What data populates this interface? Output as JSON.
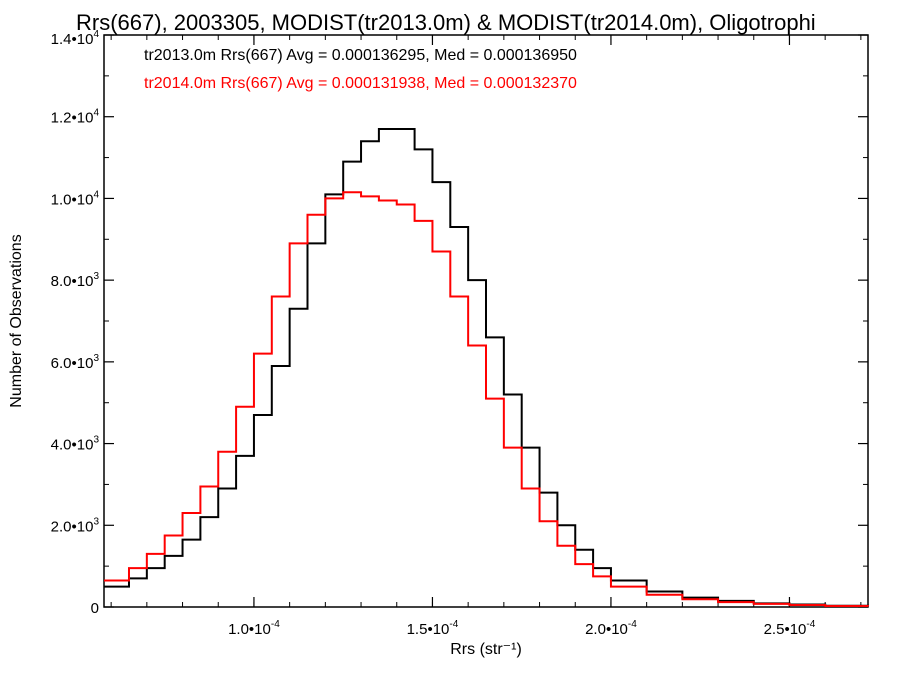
{
  "chart_data": {
    "type": "line",
    "title": "Rrs(667), 2003305, MODIST(tr2013.0m) & MODIST(tr2014.0m), Oligotrophi",
    "xlabel": "Rrs (str⁻¹)",
    "ylabel": "Number of Observations",
    "xlim": [
      5.8e-05,
      0.000272
    ],
    "ylim": [
      0,
      14000
    ],
    "x_ticks": [
      {
        "value": 0.0001,
        "label": "1.0•10⁻⁴"
      },
      {
        "value": 0.00015,
        "label": "1.5•10⁻⁴"
      },
      {
        "value": 0.0002,
        "label": "2.0•10⁻⁴"
      },
      {
        "value": 0.00025,
        "label": "2.5•10⁻⁴"
      }
    ],
    "y_ticks": [
      {
        "value": 0,
        "label": "0"
      },
      {
        "value": 2000,
        "label": "2.0•10³"
      },
      {
        "value": 4000,
        "label": "4.0•10³"
      },
      {
        "value": 6000,
        "label": "6.0•10³"
      },
      {
        "value": 8000,
        "label": "8.0•10³"
      },
      {
        "value": 10000,
        "label": "1.0•10⁴"
      },
      {
        "value": 12000,
        "label": "1.2•10⁴"
      },
      {
        "value": 14000,
        "label": "1.4•10⁴"
      }
    ],
    "annotations": [
      {
        "text": "tr2013.0m Rrs(667) Avg = 0.000136295, Med = 0.000136950",
        "color": "#000000"
      },
      {
        "text": "tr2014.0m Rrs(667) Avg = 0.000131938, Med = 0.000132370",
        "color": "#ff0000"
      }
    ],
    "series": [
      {
        "color": "#000000",
        "x": [
          5.8e-05,
          6.5e-05,
          7e-05,
          7.5e-05,
          8e-05,
          8.5e-05,
          9e-05,
          9.5e-05,
          0.0001,
          0.000105,
          0.00011,
          0.000115,
          0.00012,
          0.000125,
          0.00013,
          0.000135,
          0.00014,
          0.000145,
          0.00015,
          0.000155,
          0.00016,
          0.000165,
          0.00017,
          0.000175,
          0.00018,
          0.000185,
          0.00019,
          0.000195,
          0.0002,
          0.00021,
          0.00022,
          0.00023,
          0.00024,
          0.00025,
          0.00026,
          0.000272
        ],
        "values": [
          500,
          700,
          950,
          1250,
          1650,
          2200,
          2900,
          3700,
          4700,
          5900,
          7300,
          8900,
          10100,
          10900,
          11400,
          11700,
          11700,
          11200,
          10400,
          9300,
          8000,
          6600,
          5200,
          3900,
          2800,
          2000,
          1400,
          950,
          650,
          380,
          230,
          150,
          90,
          60,
          30,
          20
        ]
      },
      {
        "color": "#ff0000",
        "x": [
          5.8e-05,
          6.5e-05,
          7e-05,
          7.5e-05,
          8e-05,
          8.5e-05,
          9e-05,
          9.5e-05,
          0.0001,
          0.000105,
          0.00011,
          0.000115,
          0.00012,
          0.000125,
          0.00013,
          0.000135,
          0.00014,
          0.000145,
          0.00015,
          0.000155,
          0.00016,
          0.000165,
          0.00017,
          0.000175,
          0.00018,
          0.000185,
          0.00019,
          0.000195,
          0.0002,
          0.00021,
          0.00022,
          0.00023,
          0.00024,
          0.00025,
          0.00026,
          0.000272
        ],
        "values": [
          650,
          950,
          1300,
          1750,
          2300,
          2950,
          3800,
          4900,
          6200,
          7600,
          8900,
          9600,
          10000,
          10150,
          10050,
          9950,
          9850,
          9450,
          8700,
          7600,
          6400,
          5100,
          3900,
          2900,
          2100,
          1500,
          1050,
          750,
          500,
          300,
          190,
          120,
          75,
          50,
          25,
          15
        ]
      }
    ]
  }
}
